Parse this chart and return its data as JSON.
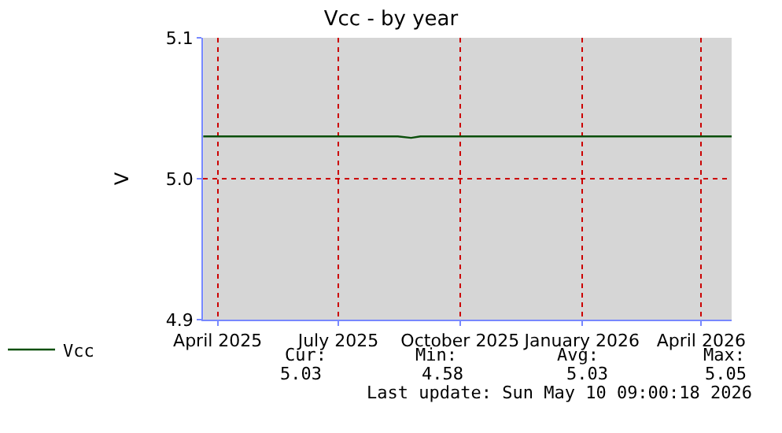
{
  "chart_data": {
    "type": "line",
    "title": "Vcc - by year",
    "ylabel": "V",
    "x": [
      "2025-03-21",
      "2025-04-15",
      "2025-05-15",
      "2025-06-15",
      "2025-07-15",
      "2025-08-01",
      "2025-08-15",
      "2025-08-25",
      "2025-09-01",
      "2025-09-10",
      "2025-10-01",
      "2025-11-01",
      "2025-12-01",
      "2026-01-01",
      "2026-02-01",
      "2026-03-01",
      "2026-03-10",
      "2026-04-01",
      "2026-04-24"
    ],
    "series": [
      {
        "name": "Vcc",
        "color": "#0b4f0b",
        "values": [
          5.03,
          5.03,
          5.03,
          5.03,
          5.03,
          5.03,
          5.03,
          5.029,
          5.03,
          5.03,
          5.03,
          5.03,
          5.03,
          5.03,
          5.03,
          5.03,
          5.03,
          5.03,
          5.03
        ]
      }
    ],
    "xlim": [
      "2025-03-21",
      "2026-04-24"
    ],
    "xticks": [
      {
        "value": "2025-04-01",
        "label": "April 2025"
      },
      {
        "value": "2025-07-01",
        "label": "July 2025"
      },
      {
        "value": "2025-10-01",
        "label": "October 2025"
      },
      {
        "value": "2026-01-01",
        "label": "January 2026"
      },
      {
        "value": "2026-04-01",
        "label": "April 2026"
      }
    ],
    "ylim": [
      4.9,
      5.1
    ],
    "yticks": [
      {
        "value": 4.9,
        "label": "4.9"
      },
      {
        "value": 5.0,
        "label": "5.0"
      },
      {
        "value": 5.1,
        "label": "5.1"
      }
    ],
    "grid": true,
    "legend": "bottom left",
    "marker": "none",
    "line_style": "solid",
    "annotations": [
      "Cur:",
      "Min:",
      "Avg:",
      "Max:",
      "5.03",
      "4.58",
      "5.03",
      "5.05",
      "Last update: Sun May 10 09:00:18 2026"
    ]
  }
}
